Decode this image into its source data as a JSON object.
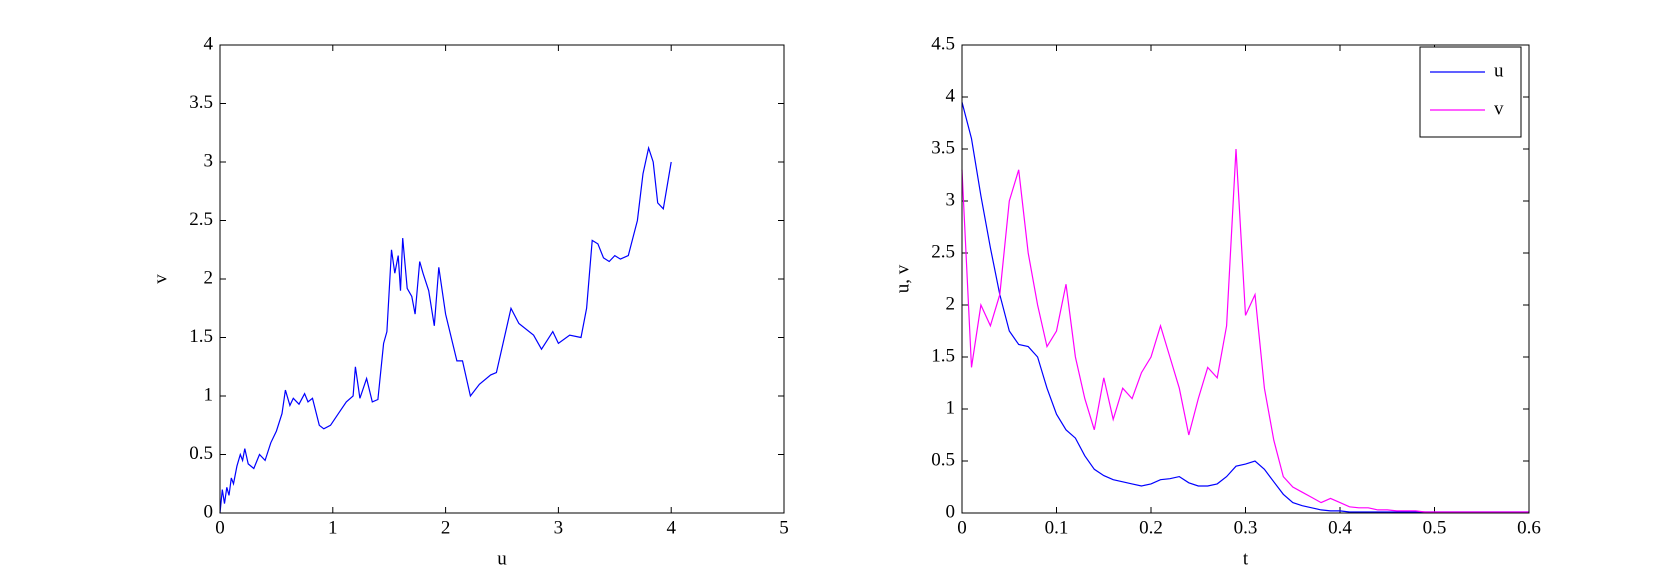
{
  "chart_data": [
    {
      "type": "line",
      "xlabel": "u",
      "ylabel": "v",
      "color": "#0000ff",
      "x": [
        0,
        0.02,
        0.04,
        0.06,
        0.08,
        0.1,
        0.12,
        0.15,
        0.18,
        0.2,
        0.22,
        0.25,
        0.3,
        0.35,
        0.4,
        0.45,
        0.5,
        0.55,
        0.58,
        0.62,
        0.65,
        0.7,
        0.75,
        0.78,
        0.82,
        0.88,
        0.92,
        0.98,
        1.05,
        1.12,
        1.18,
        1.2,
        1.24,
        1.3,
        1.35,
        1.4,
        1.45,
        1.48,
        1.52,
        1.55,
        1.58,
        1.6,
        1.62,
        1.66,
        1.7,
        1.73,
        1.77,
        1.8,
        1.85,
        1.9,
        1.94,
        2.0,
        2.1,
        2.15,
        2.22,
        2.3,
        2.4,
        2.45,
        2.58,
        2.65,
        2.78,
        2.85,
        2.95,
        3.0,
        3.1,
        3.2,
        3.25,
        3.3,
        3.35,
        3.4,
        3.45,
        3.5,
        3.55,
        3.62,
        3.7,
        3.75,
        3.8,
        3.84,
        3.88,
        3.93,
        4.0
      ],
      "values": [
        0,
        0.2,
        0.08,
        0.22,
        0.15,
        0.3,
        0.25,
        0.4,
        0.5,
        0.45,
        0.55,
        0.42,
        0.38,
        0.5,
        0.45,
        0.6,
        0.7,
        0.85,
        1.05,
        0.92,
        0.98,
        0.93,
        1.02,
        0.95,
        0.98,
        0.75,
        0.72,
        0.75,
        0.85,
        0.95,
        1.0,
        1.25,
        0.98,
        1.15,
        0.95,
        0.97,
        1.45,
        1.55,
        2.25,
        2.05,
        2.2,
        1.9,
        2.35,
        1.92,
        1.85,
        1.7,
        2.15,
        2.05,
        1.9,
        1.6,
        2.1,
        1.7,
        1.3,
        1.3,
        1.0,
        1.1,
        1.18,
        1.2,
        1.75,
        1.62,
        1.52,
        1.4,
        1.55,
        1.45,
        1.52,
        1.5,
        1.75,
        2.33,
        2.3,
        2.18,
        2.15,
        2.2,
        2.17,
        2.2,
        2.5,
        2.9,
        3.12,
        3.0,
        2.65,
        2.6,
        3.0
      ],
      "xlim": [
        0,
        5
      ],
      "xticks": [
        0,
        1,
        2,
        3,
        4,
        5
      ],
      "ylim": [
        0,
        4
      ],
      "yticks": [
        0,
        0.5,
        1,
        1.5,
        2,
        2.5,
        3,
        3.5,
        4
      ]
    },
    {
      "type": "line",
      "xlabel": "t",
      "ylabel": "u, v",
      "legend": "upper right",
      "x": [
        0,
        0.01,
        0.02,
        0.03,
        0.04,
        0.05,
        0.06,
        0.07,
        0.08,
        0.09,
        0.1,
        0.11,
        0.12,
        0.13,
        0.14,
        0.15,
        0.16,
        0.17,
        0.18,
        0.19,
        0.2,
        0.21,
        0.22,
        0.23,
        0.24,
        0.25,
        0.26,
        0.27,
        0.28,
        0.29,
        0.3,
        0.31,
        0.32,
        0.33,
        0.34,
        0.35,
        0.36,
        0.37,
        0.38,
        0.39,
        0.4,
        0.41,
        0.42,
        0.43,
        0.44,
        0.45,
        0.46,
        0.47,
        0.48,
        0.49,
        0.5,
        0.51,
        0.52,
        0.53,
        0.54,
        0.55,
        0.56,
        0.57,
        0.58,
        0.59,
        0.6
      ],
      "series": [
        {
          "name": "u",
          "color": "#0000ff",
          "values": [
            3.95,
            3.6,
            3.05,
            2.55,
            2.1,
            1.75,
            1.62,
            1.6,
            1.5,
            1.2,
            0.95,
            0.8,
            0.72,
            0.55,
            0.42,
            0.36,
            0.32,
            0.3,
            0.28,
            0.26,
            0.28,
            0.32,
            0.33,
            0.35,
            0.29,
            0.26,
            0.26,
            0.28,
            0.35,
            0.45,
            0.47,
            0.5,
            0.42,
            0.3,
            0.18,
            0.1,
            0.07,
            0.05,
            0.03,
            0.02,
            0.02,
            0.01,
            0.01,
            0.01,
            0.01,
            0.01,
            0.01,
            0.01,
            0.01,
            0.01,
            0.01,
            0.01,
            0.01,
            0.01,
            0.01,
            0.01,
            0.01,
            0.01,
            0.01,
            0.01,
            0.01
          ]
        },
        {
          "name": "v",
          "color": "#ff00ff",
          "values": [
            3.3,
            1.4,
            2.0,
            1.8,
            2.1,
            3.0,
            3.3,
            2.5,
            2.0,
            1.6,
            1.75,
            2.2,
            1.5,
            1.1,
            0.8,
            1.3,
            0.9,
            1.2,
            1.1,
            1.35,
            1.5,
            1.8,
            1.5,
            1.2,
            0.75,
            1.1,
            1.4,
            1.3,
            1.8,
            3.5,
            1.9,
            2.1,
            1.2,
            0.7,
            0.35,
            0.25,
            0.2,
            0.15,
            0.1,
            0.14,
            0.1,
            0.06,
            0.05,
            0.05,
            0.03,
            0.03,
            0.02,
            0.02,
            0.02,
            0.01,
            0.01,
            0.01,
            0.01,
            0.01,
            0.01,
            0.01,
            0.01,
            0.01,
            0.01,
            0.01,
            0.01
          ]
        }
      ],
      "xlim": [
        0,
        0.6
      ],
      "xticks": [
        0,
        0.1,
        0.2,
        0.3,
        0.4,
        0.5,
        0.6
      ],
      "ylim": [
        0,
        4.5
      ],
      "yticks": [
        0,
        0.5,
        1,
        1.5,
        2,
        2.5,
        3,
        3.5,
        4,
        4.5
      ]
    }
  ]
}
